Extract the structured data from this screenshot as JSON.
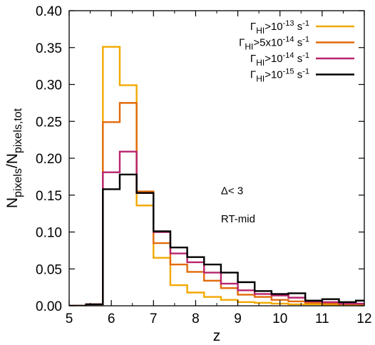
{
  "chart_data": {
    "type": "line",
    "xlabel": "z",
    "ylabel": {
      "base": "N",
      "sub1": "pixels",
      "mid": "/N",
      "sub2": "pixels,tot"
    },
    "xlim": [
      5,
      12
    ],
    "ylim": [
      0,
      0.4
    ],
    "xticks": [
      "5",
      "6",
      "7",
      "8",
      "9",
      "10",
      "11",
      "12"
    ],
    "yticks": [
      "0.00",
      "0.05",
      "0.10",
      "0.15",
      "0.20",
      "0.25",
      "0.30",
      "0.35",
      "0.40"
    ],
    "bin_edges": [
      5.0,
      5.4,
      5.8,
      6.2,
      6.6,
      7.0,
      7.4,
      7.8,
      8.2,
      8.6,
      9.0,
      9.4,
      9.8,
      10.2,
      10.6,
      11.0,
      11.4,
      11.8,
      12.2
    ],
    "series": [
      {
        "label": {
          "pre": "Γ",
          "sub": "HI",
          "mid": ">10",
          "sup": "-13",
          "post": " s",
          "sup2": "-1"
        },
        "color": "#F2A900",
        "values": [
          0.0,
          0.002,
          0.351,
          0.299,
          0.136,
          0.065,
          0.028,
          0.018,
          0.012,
          0.008,
          0.005,
          0.004,
          0.003,
          0.002,
          0.002,
          0.001,
          0.001,
          0.001
        ]
      },
      {
        "label": {
          "pre": "Γ",
          "sub": "HI",
          "mid": ">5x10",
          "sup": "-14",
          "post": " s",
          "sup2": "-1"
        },
        "color": "#E26B0A",
        "values": [
          0.0,
          0.002,
          0.249,
          0.275,
          0.155,
          0.085,
          0.056,
          0.046,
          0.034,
          0.024,
          0.015,
          0.012,
          0.008,
          0.006,
          0.004,
          0.003,
          0.002,
          0.002
        ]
      },
      {
        "label": {
          "pre": "Γ",
          "sub": "HI",
          "mid": ">10",
          "sup": "-14",
          "post": " s",
          "sup2": "-1"
        },
        "color": "#B8246C",
        "values": [
          0.0,
          0.002,
          0.181,
          0.209,
          0.153,
          0.1,
          0.071,
          0.059,
          0.045,
          0.03,
          0.021,
          0.016,
          0.014,
          0.011,
          0.006,
          0.005,
          0.003,
          0.003
        ]
      },
      {
        "label": {
          "pre": "Γ",
          "sub": "HI",
          "mid": ">10",
          "sup": "-15",
          "post": " s",
          "sup2": "-1"
        },
        "color": "#000000",
        "values": [
          0.0,
          0.002,
          0.158,
          0.178,
          0.153,
          0.101,
          0.079,
          0.066,
          0.056,
          0.045,
          0.032,
          0.02,
          0.016,
          0.017,
          0.007,
          0.009,
          0.005,
          0.007
        ]
      }
    ],
    "annotations": [
      "Δ< 3",
      "RT-mid"
    ],
    "grid": false,
    "legend_position": "top-right"
  }
}
